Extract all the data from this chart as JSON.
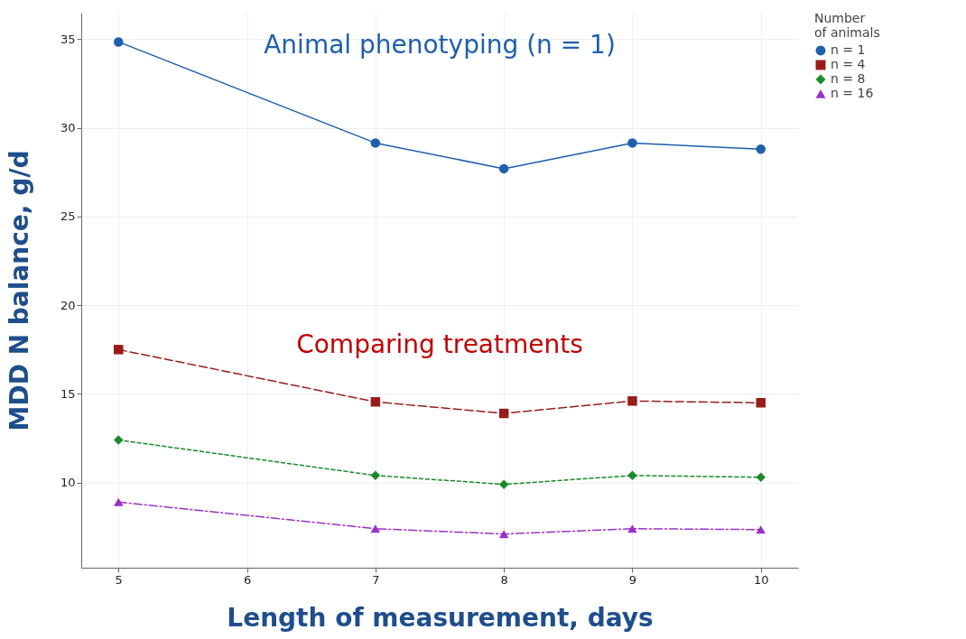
{
  "chart_data": {
    "type": "line",
    "xlabel": "Length of measurement, days",
    "ylabel": "MDD N balance, g/d",
    "legend_title": "Number of animals",
    "legend": "top right",
    "grid": true,
    "x": [
      5,
      7,
      8,
      9,
      10
    ],
    "xlim": [
      4.71,
      10.29
    ],
    "xticks": [
      5,
      6,
      7,
      8,
      9,
      10
    ],
    "ylim": [
      5.2,
      36.5
    ],
    "yticks": [
      10,
      15,
      20,
      25,
      30,
      35
    ],
    "series": [
      {
        "name": "n = 1",
        "color": "#1f5fad",
        "marker": "circle",
        "line_style": "solid",
        "values": [
          34.85,
          29.15,
          27.7,
          29.15,
          28.8
        ]
      },
      {
        "name": "n = 4",
        "color": "#9b1b1b",
        "marker": "square",
        "line_style": "dashed",
        "values": [
          17.5,
          14.55,
          13.9,
          14.6,
          14.5
        ]
      },
      {
        "name": "n = 8",
        "color": "#1a8a2a",
        "marker": "diamond",
        "line_style": "dotted",
        "values": [
          12.4,
          10.4,
          9.9,
          10.4,
          10.3
        ]
      },
      {
        "name": "n = 16",
        "color": "#9b30c8",
        "marker": "triangle",
        "line_style": "dashdot",
        "values": [
          8.9,
          7.4,
          7.1,
          7.4,
          7.35
        ]
      }
    ],
    "annotations": [
      "Animal phenotyping (n = 1)",
      "Comparing treatments"
    ]
  }
}
